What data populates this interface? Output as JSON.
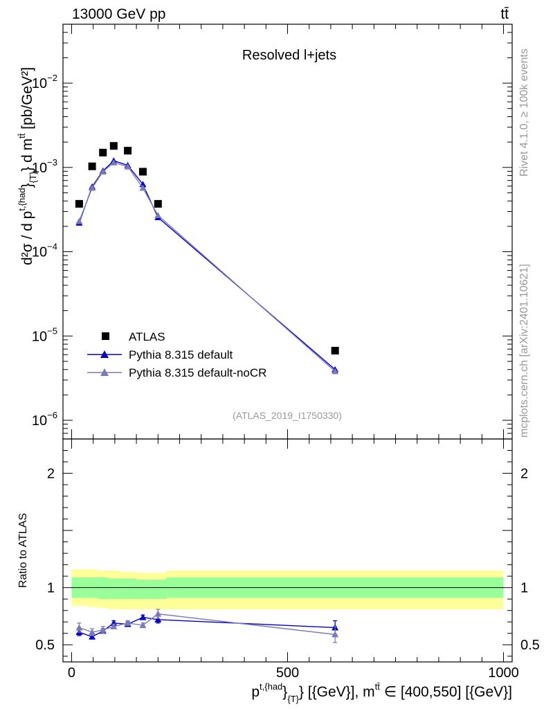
{
  "header": {
    "energy_label": "13000 GeV pp",
    "process_label": "tt̄"
  },
  "side_labels": {
    "rivet": "Rivet 4.1.0, ≥ 100k events",
    "mcplots": "mcplots.cern.ch [arXiv:2401.10621]"
  },
  "chart_data": {
    "type": "line",
    "title": "Resolved l+jets",
    "analysis_id": "(ATLAS_2019_I1750330)",
    "main_panel": {
      "ylabel": {
        "d2": "d²σ / d p",
        "sup1": "t,{had",
        "mid": "}",
        "sub1": "{T}",
        "rest": "} d m",
        "sup2": "tt̄",
        "unit": " [pb/GeV²]"
      },
      "yscale": "log",
      "ylim": [
        6e-07,
        0.05
      ],
      "ytick_labels": [
        {
          "base": "10",
          "exp": "−6",
          "value": 1e-06
        },
        {
          "base": "10",
          "exp": "−5",
          "value": 1e-05
        },
        {
          "base": "10",
          "exp": "−4",
          "value": 0.0001
        },
        {
          "base": "10",
          "exp": "−3",
          "value": 0.001
        },
        {
          "base": "10",
          "exp": "−2",
          "value": 0.01
        }
      ],
      "legend_position": "bottom-left",
      "series": [
        {
          "name": "ATLAS",
          "style": "marker-square",
          "color": "#000000",
          "x": [
            17.5,
            47.5,
            72.5,
            97.5,
            130,
            165,
            200,
            610
          ],
          "y": [
            0.00037,
            0.00103,
            0.0015,
            0.0018,
            0.00158,
            0.00089,
            0.00037,
            6.7e-06
          ]
        },
        {
          "name": "Pythia 8.315 default",
          "style": "line-triangle",
          "color": "#0000cc",
          "x": [
            17.5,
            47.5,
            72.5,
            97.5,
            130,
            165,
            200,
            610
          ],
          "y": [
            0.00022,
            0.00059,
            0.00091,
            0.0012,
            0.00106,
            0.00063,
            0.000255,
            4e-06
          ]
        },
        {
          "name": "Pythia 8.315 default-noCR",
          "style": "line-triangle",
          "color": "#7a7ab8",
          "x": [
            17.5,
            47.5,
            72.5,
            97.5,
            130,
            165,
            200,
            610
          ],
          "y": [
            0.00023,
            0.00057,
            0.00089,
            0.00114,
            0.00102,
            0.00057,
            0.00027,
            3.8e-06
          ]
        }
      ]
    },
    "ratio_panel": {
      "ylabel": "Ratio to ATLAS",
      "ylim": [
        0.35,
        2.3
      ],
      "ytick_labels": [
        "0.5",
        "1",
        "2"
      ],
      "ytick_values": [
        0.5,
        1,
        2
      ],
      "band_edges": [
        0,
        35,
        60,
        85,
        110,
        150,
        180,
        220,
        1000
      ],
      "band_yellow_low": [
        0.84,
        0.83,
        0.82,
        0.81,
        0.81,
        0.81,
        0.81,
        0.81
      ],
      "band_yellow_high": [
        1.16,
        1.16,
        1.15,
        1.15,
        1.14,
        1.13,
        1.13,
        1.15
      ],
      "band_green_low": [
        0.91,
        0.91,
        0.9,
        0.9,
        0.9,
        0.9,
        0.9,
        0.91
      ],
      "band_green_high": [
        1.09,
        1.09,
        1.09,
        1.08,
        1.08,
        1.07,
        1.07,
        1.09
      ],
      "series": [
        {
          "name": "Pythia 8.315 default",
          "color": "#0000cc",
          "x": [
            17.5,
            47.5,
            72.5,
            97.5,
            130,
            165,
            200,
            610
          ],
          "y": [
            0.61,
            0.57,
            0.62,
            0.69,
            0.68,
            0.74,
            0.72,
            0.65
          ],
          "err": [
            0.03,
            0.02,
            0.02,
            0.02,
            0.02,
            0.02,
            0.03,
            0.06
          ]
        },
        {
          "name": "Pythia 8.315 default-noCR",
          "color": "#7a7ab8",
          "x": [
            17.5,
            47.5,
            72.5,
            97.5,
            130,
            165,
            200,
            610
          ],
          "y": [
            0.65,
            0.61,
            0.63,
            0.66,
            0.69,
            0.67,
            0.77,
            0.59
          ],
          "err": [
            0.04,
            0.03,
            0.03,
            0.02,
            0.02,
            0.02,
            0.04,
            0.07
          ]
        }
      ]
    },
    "xaxis": {
      "xlim": [
        -20,
        1020
      ],
      "tick_labels": [
        "0",
        "500",
        "1000"
      ],
      "tick_values": [
        0,
        500,
        1000
      ],
      "xlabel": {
        "p": "p",
        "sup": "t,{had",
        "mid": "}",
        "sub": "{T}",
        "rest": "} [{GeV}], m",
        "sup2": "tt̄",
        "tail": " ∈ [400,550] [{GeV}]"
      }
    }
  }
}
